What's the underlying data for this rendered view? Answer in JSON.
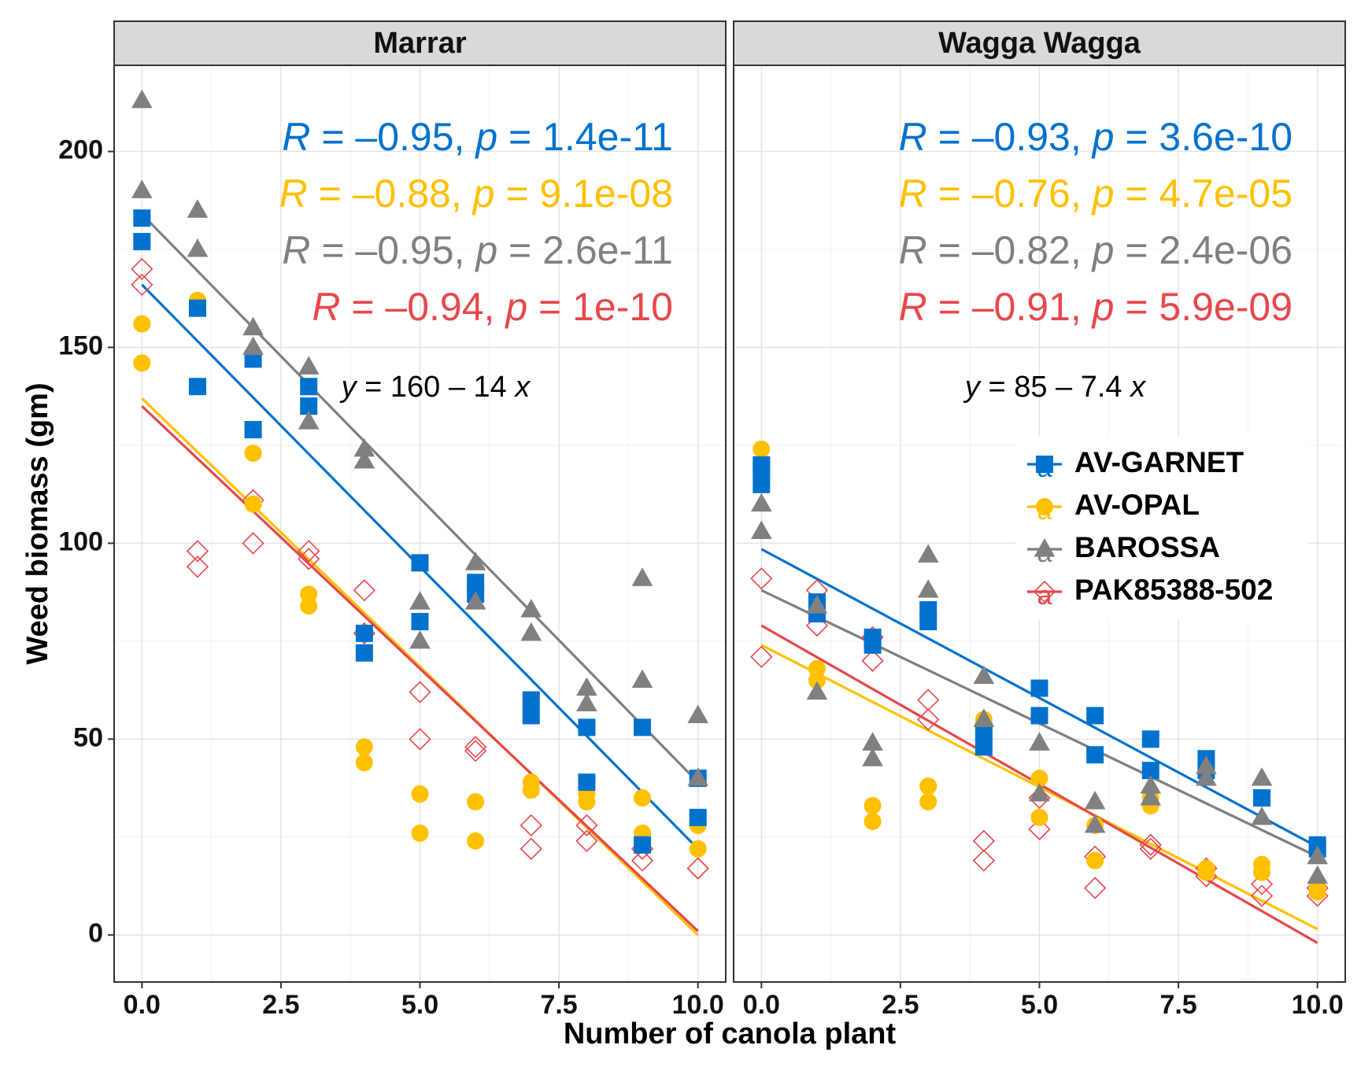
{
  "chart_data": {
    "type": "scatter",
    "xlabel": "Number of canola plant",
    "ylabel": "Weed biomass (gm)",
    "xlim": [
      -0.5,
      10.5
    ],
    "ylim": [
      -12,
      222
    ],
    "x_ticks": [
      "0.0",
      "2.5",
      "5.0",
      "7.5",
      "10.0"
    ],
    "x_tick_values": [
      0,
      2.5,
      5,
      7.5,
      10
    ],
    "y_ticks": [
      "0",
      "50",
      "100",
      "150",
      "200"
    ],
    "y_tick_values": [
      0,
      50,
      100,
      150,
      200
    ],
    "grid": true,
    "legend": {
      "placement": "right panel, middle-right",
      "entries": [
        {
          "name": "AV-GARNET",
          "color": "#0072CE",
          "shape": "square"
        },
        {
          "name": "AV-OPAL",
          "color": "#FFC000",
          "shape": "circle"
        },
        {
          "name": "BAROSSA",
          "color": "#808080",
          "shape": "triangle"
        },
        {
          "name": "PAK85388-502",
          "color": "#E8474C",
          "shape": "diamond-open"
        }
      ],
      "key_glyph": "a"
    },
    "panels": [
      {
        "strip": "Marrar",
        "equation": {
          "lhs": "y",
          "text": " = 160 – 14 ",
          "var": "x"
        },
        "stats": [
          {
            "series": "AV-GARNET",
            "R": "R",
            "r_val": " = –0.95, ",
            "p": "p",
            "p_val": " = 1.4e-11",
            "color": "#0072CE"
          },
          {
            "series": "AV-OPAL",
            "R": "R",
            "r_val": " = –0.88, ",
            "p": "p",
            "p_val": " = 9.1e-08",
            "color": "#FFC000"
          },
          {
            "series": "BAROSSA",
            "R": "R",
            "r_val": " = –0.95, ",
            "p": "p",
            "p_val": " = 2.6e-11",
            "color": "#808080"
          },
          {
            "series": "PAK85388-502",
            "R": "R",
            "r_val": " = –0.94, ",
            "p": "p",
            "p_val": " = 1e-10",
            "color": "#E8474C"
          }
        ],
        "fits": [
          {
            "series": "AV-GARNET",
            "intercept": 166,
            "slope": -14.4
          },
          {
            "series": "AV-OPAL",
            "intercept": 137,
            "slope": -13.7
          },
          {
            "series": "BAROSSA",
            "intercept": 184,
            "slope": -14.5
          },
          {
            "series": "PAK85388-502",
            "intercept": 135,
            "slope": -13.4
          }
        ],
        "series": [
          {
            "name": "AV-GARNET",
            "x": [
              0,
              0,
              1,
              1,
              2,
              2,
              3,
              3,
              4,
              4,
              5,
              5,
              6,
              6,
              7,
              7,
              8,
              8,
              9,
              9,
              10,
              10
            ],
            "y": [
              183,
              177,
              160,
              140,
              147,
              129,
              140,
              135,
              77,
              72,
              95,
              80,
              90,
              87,
              60,
              56,
              53,
              39,
              53,
              23,
              40,
              30
            ]
          },
          {
            "name": "AV-OPAL",
            "x": [
              0,
              0,
              1,
              1,
              2,
              2,
              3,
              3,
              4,
              4,
              5,
              5,
              6,
              6,
              7,
              7,
              8,
              8,
              9,
              9,
              10,
              10
            ],
            "y": [
              156,
              146,
              162,
              160,
              123,
              110,
              87,
              84,
              48,
              44,
              36,
              26,
              34,
              24,
              39,
              37,
              36,
              34,
              35,
              26,
              28,
              22
            ]
          },
          {
            "name": "BAROSSA",
            "x": [
              0,
              0,
              1,
              1,
              2,
              2,
              3,
              3,
              4,
              4,
              5,
              5,
              6,
              6,
              7,
              7,
              8,
              8,
              9,
              9,
              10,
              10
            ],
            "y": [
              213,
              190,
              185,
              175,
              155,
              150,
              145,
              131,
              124,
              121,
              85,
              75,
              95,
              85,
              83,
              77,
              63,
              59,
              91,
              65,
              56,
              40
            ]
          },
          {
            "name": "PAK85388-502",
            "x": [
              0,
              0,
              1,
              1,
              2,
              2,
              3,
              3,
              4,
              4,
              5,
              5,
              6,
              6,
              7,
              7,
              8,
              8,
              9,
              9,
              10,
              10
            ],
            "y": [
              170,
              166,
              98,
              94,
              111,
              100,
              98,
              96,
              88,
              77,
              62,
              50,
              48,
              47,
              28,
              22,
              28,
              24,
              22,
              19,
              17,
              17
            ]
          }
        ]
      },
      {
        "strip": "Wagga Wagga",
        "equation": {
          "lhs": "y",
          "text": " = 85 – 7.4 ",
          "var": "x"
        },
        "stats": [
          {
            "series": "AV-GARNET",
            "R": "R",
            "r_val": " = –0.93, ",
            "p": "p",
            "p_val": " = 3.6e-10",
            "color": "#0072CE"
          },
          {
            "series": "AV-OPAL",
            "R": "R",
            "r_val": " = –0.76, ",
            "p": "p",
            "p_val": " = 4.7e-05",
            "color": "#FFC000"
          },
          {
            "series": "BAROSSA",
            "R": "R",
            "r_val": " = –0.82, ",
            "p": "p",
            "p_val": " = 2.4e-06",
            "color": "#808080"
          },
          {
            "series": "PAK85388-502",
            "R": "R",
            "r_val": " = –0.91, ",
            "p": "p",
            "p_val": " = 5.9e-09",
            "color": "#E8474C"
          }
        ],
        "fits": [
          {
            "series": "AV-GARNET",
            "intercept": 98.5,
            "slope": -7.6
          },
          {
            "series": "AV-OPAL",
            "intercept": 74,
            "slope": -7.25
          },
          {
            "series": "BAROSSA",
            "intercept": 88,
            "slope": -6.8
          },
          {
            "series": "PAK85388-502",
            "intercept": 79,
            "slope": -8.1
          }
        ],
        "series": [
          {
            "name": "AV-GARNET",
            "x": [
              0,
              0,
              0,
              1,
              1,
              2,
              2,
              3,
              3,
              4,
              4,
              5,
              5,
              6,
              6,
              7,
              7,
              8,
              8,
              9,
              9,
              10,
              10
            ],
            "y": [
              120,
              115,
              119,
              85,
              82,
              76,
              74,
              83,
              80,
              52,
              48,
              63,
              56,
              56,
              46,
              50,
              42,
              45,
              42,
              35,
              35,
              23,
              22
            ]
          },
          {
            "name": "AV-OPAL",
            "x": [
              0,
              0,
              1,
              1,
              2,
              2,
              3,
              3,
              4,
              4,
              5,
              5,
              6,
              6,
              7,
              7,
              8,
              8,
              9,
              9,
              10,
              10
            ],
            "y": [
              124,
              118,
              68,
              65,
              33,
              29,
              38,
              34,
              55,
              52,
              40,
              30,
              28,
              19,
              35,
              33,
              17,
              16,
              18,
              16,
              13,
              11
            ]
          },
          {
            "name": "BAROSSA",
            "x": [
              0,
              0,
              1,
              1,
              2,
              2,
              3,
              3,
              4,
              4,
              5,
              5,
              6,
              6,
              7,
              7,
              8,
              8,
              9,
              9,
              10,
              10
            ],
            "y": [
              110,
              103,
              84,
              62,
              49,
              45,
              97,
              88,
              66,
              55,
              49,
              36,
              34,
              28,
              38,
              35,
              43,
              40,
              40,
              30,
              20,
              15
            ]
          },
          {
            "name": "PAK85388-502",
            "x": [
              0,
              0,
              1,
              1,
              2,
              2,
              3,
              3,
              4,
              4,
              5,
              5,
              6,
              6,
              7,
              7,
              8,
              8,
              9,
              9,
              10,
              10
            ],
            "y": [
              91,
              71,
              88,
              79,
              76,
              70,
              60,
              55,
              24,
              19,
              35,
              27,
              20,
              12,
              23,
              22,
              17,
              15,
              13,
              10,
              12,
              10
            ]
          }
        ]
      }
    ]
  }
}
